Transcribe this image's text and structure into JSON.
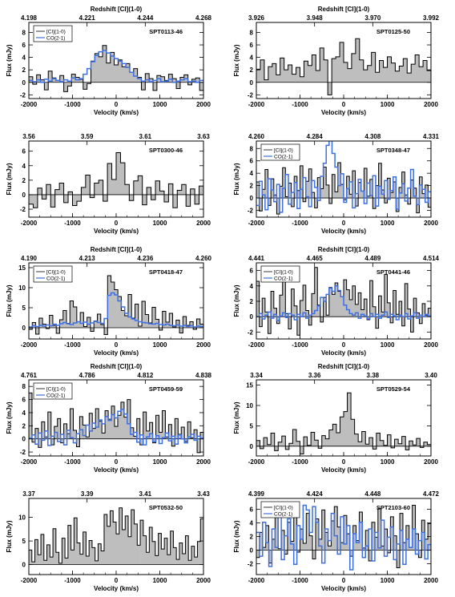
{
  "figure": {
    "type": "multi-panel spectra",
    "panel_count": 10,
    "fill_color": "#bebebe",
    "ci_line_color": "#000000",
    "co_line_color": "#3d6fe0"
  },
  "chart_data": [
    {
      "type": "area",
      "name": "SPT0113-46",
      "xlabel": "Velocity (km/s)",
      "ylabel": "Flux (mJy)",
      "top_axis_label": "Redshift [CI](1-0)",
      "top_ticks": [
        "4.198",
        "4.221",
        "4.244",
        "4.268"
      ],
      "x_ticks": [
        "-2000",
        "-1000",
        "0",
        "1000",
        "2000"
      ],
      "y_ticks": [
        "-2",
        "0",
        "2",
        "4",
        "6",
        "8"
      ],
      "xlim": [
        -2000,
        2000
      ],
      "ylim": [
        -2.6,
        9.6
      ],
      "legend": [
        "[CI](1-0)",
        "CO(2-1)"
      ],
      "ci_values": [
        0.9,
        -0.3,
        1.2,
        0.4,
        -1.2,
        1.8,
        0.7,
        0.3,
        1.1,
        -1.5,
        -0.6,
        1.3,
        0.8,
        0.5,
        -1.1,
        -0.2,
        3.4,
        4.6,
        4.1,
        5.9,
        3.1,
        4.8,
        2.8,
        3.6,
        2.5,
        3.0,
        1.6,
        2.2,
        0.8,
        -1.2,
        1.4,
        0.6,
        -1.3,
        1.1,
        0.9,
        0.3,
        1.3,
        0.6,
        -1.0,
        0.8,
        1.2,
        -0.4,
        0.5,
        0.7,
        -1.3
      ],
      "co_values": [
        0.3,
        0.1,
        0.4,
        0.0,
        0.5,
        0.2,
        0.6,
        0.3,
        0.1,
        0.4,
        0.2,
        0.7,
        0.4,
        0.6,
        1.3,
        2.2,
        3.3,
        4.3,
        4.9,
        5.1,
        4.7,
        4.2,
        3.8,
        3.4,
        3.0,
        2.4,
        1.6,
        1.0,
        0.6,
        0.2,
        0.4,
        0.1,
        0.3,
        0.6,
        0.1,
        0.2,
        0.5,
        0.0,
        0.2,
        0.4,
        0.6,
        0.1,
        0.2,
        0.0,
        0.3
      ]
    },
    {
      "type": "area",
      "name": "SPT0125-50",
      "xlabel": "Velocity (km/s)",
      "ylabel": "Flux (mJy)",
      "top_axis_label": "Redshift [CI](1-0)",
      "top_ticks": [
        "3.926",
        "3.948",
        "3.970",
        "3.992"
      ],
      "x_ticks": [
        "-2000",
        "-1000",
        "0",
        "1000",
        "2000"
      ],
      "y_ticks": [
        "-2",
        "0",
        "2",
        "4",
        "6",
        "8"
      ],
      "xlim": [
        -2000,
        2000
      ],
      "ylim": [
        -2.6,
        9.6
      ],
      "legend": [],
      "ci_values": [
        2.1,
        3.6,
        0.4,
        2.5,
        3.0,
        1.2,
        3.9,
        2.0,
        2.8,
        1.3,
        2.4,
        0.9,
        3.4,
        2.7,
        4.4,
        1.9,
        5.5,
        3.6,
        -2.0,
        3.8,
        4.1,
        6.4,
        3.2,
        2.2,
        4.6,
        7.0,
        3.6,
        2.0,
        2.7,
        4.8,
        1.6,
        3.5,
        2.4,
        4.1,
        3.1,
        1.8,
        2.6,
        3.8,
        1.5,
        2.9,
        4.4,
        2.5,
        3.5,
        1.9
      ],
      "co_values": []
    },
    {
      "type": "area",
      "name": "SPT0300-46",
      "xlabel": "Velocity (km/s)",
      "ylabel": "Flux (mJy)",
      "top_axis_label": "",
      "top_ticks": [
        "3.56",
        "3.59",
        "3.61",
        "3.63"
      ],
      "x_ticks": [
        "-2000",
        "-1000",
        "0",
        "1000",
        "2000"
      ],
      "y_ticks": [
        "-2",
        "0",
        "2",
        "4",
        "6"
      ],
      "xlim": [
        -2000,
        2000
      ],
      "ylim": [
        -3.1,
        7.4
      ],
      "legend": [],
      "ci_values": [
        -1.3,
        -1.8,
        0.9,
        -0.6,
        1.4,
        -1.7,
        0.7,
        1.6,
        -1.1,
        0.4,
        -1.5,
        -0.9,
        1.0,
        2.7,
        -0.4,
        1.6,
        2.0,
        -0.9,
        4.3,
        2.1,
        5.8,
        4.4,
        1.4,
        -0.8,
        1.9,
        2.6,
        -1.4,
        1.0,
        -0.7,
        1.9,
        0.5,
        -1.0,
        1.5,
        -1.8,
        0.6,
        1.4,
        -1.6,
        0.8,
        -1.3,
        1.2
      ],
      "co_values": []
    },
    {
      "type": "area",
      "name": "SPT0348-47",
      "xlabel": "Velocity (km/s)",
      "ylabel": "Flux (mJy)",
      "top_axis_label": "",
      "top_ticks": [
        "4.260",
        "4.284",
        "4.308",
        "4.331"
      ],
      "x_ticks": [
        "-2000",
        "-1000",
        "0",
        "1000",
        "2000"
      ],
      "y_ticks": [
        "-2",
        "0",
        "2",
        "4",
        "6",
        "8"
      ],
      "xlim": [
        -2000,
        2000
      ],
      "ylim": [
        -3.1,
        9.2
      ],
      "legend": [
        "[CI](1-0)",
        "CO(2-1)"
      ],
      "ci_values": [
        2.6,
        -2.1,
        1.4,
        4.6,
        -1.2,
        3.1,
        0.5,
        -2.6,
        1.9,
        4.9,
        0.2,
        2.4,
        -1.4,
        3.5,
        1.2,
        5.2,
        -0.6,
        2.7,
        4.7,
        0.9,
        -1.6,
        3.3,
        1.5,
        5.0,
        2.1,
        -0.9,
        3.8,
        1.0,
        5.7,
        2.2,
        -0.3,
        3.5,
        0.6,
        4.4,
        -1.3,
        2.5,
        1.1,
        4.8,
        0.3,
        3.0,
        -1.7,
        2.0,
        5.6,
        1.3,
        -0.8,
        3.2,
        0.9,
        2.6,
        -2.2,
        1.7,
        4.2,
        0.5,
        -1.0,
        2.9,
        1.6,
        -2.4,
        3.4,
        0.7,
        2.1,
        -1.5
      ],
      "co_values": [
        -1.2,
        2.7,
        0.5,
        -1.9,
        3.1,
        1.3,
        -0.6,
        2.2,
        -2.3,
        1.6,
        3.8,
        -1.0,
        0.9,
        2.5,
        -1.7,
        1.4,
        3.3,
        0.2,
        -1.4,
        2.8,
        1.7,
        -0.4,
        3.5,
        5.6,
        8.5,
        9.5,
        7.2,
        5.0,
        2.0,
        3.9,
        -0.7,
        1.5,
        2.6,
        -1.6,
        0.7,
        3.0,
        1.1,
        -0.9,
        2.4,
        0.4,
        3.6,
        -1.3,
        1.9,
        0.6,
        2.8,
        -0.2,
        1.2,
        3.4,
        -1.8,
        0.8,
        2.3,
        -0.5,
        1.6,
        4.6,
        0.3,
        -1.1,
        2.1,
        1.4,
        -0.7,
        1.0
      ]
    },
    {
      "type": "area",
      "name": "SPT0418-47",
      "xlabel": "Velocity (km/s)",
      "ylabel": "Flux (mJy)",
      "top_axis_label": "Redshift [CI](1-0)",
      "top_ticks": [
        "4.190",
        "4.213",
        "4.236",
        "4.260"
      ],
      "x_ticks": [
        "-2000",
        "-1000",
        "0",
        "1000",
        "2000"
      ],
      "y_ticks": [
        "0",
        "5",
        "10",
        "15"
      ],
      "xlim": [
        -2000,
        2000
      ],
      "ylim": [
        -2.8,
        16.2
      ],
      "legend": [
        "[CI](1-0)",
        "CO(2-1)"
      ],
      "ci_values": [
        -0.4,
        1.3,
        -1.6,
        2.4,
        0.9,
        -0.2,
        3.1,
        0.6,
        -1.4,
        2.0,
        4.3,
        1.1,
        6.7,
        5.2,
        1.5,
        3.8,
        0.3,
        2.6,
        -0.9,
        1.7,
        3.4,
        0.8,
        -1.7,
        13.0,
        11.4,
        9.5,
        7.8,
        4.3,
        3.0,
        8.3,
        2.4,
        5.9,
        0.4,
        6.6,
        3.3,
        1.2,
        5.1,
        2.1,
        -0.6,
        4.1,
        1.4,
        3.6,
        0.2,
        1.9,
        -1.3,
        2.8,
        0.6,
        1.5,
        -0.4,
        2.2,
        0.9
      ],
      "co_values": [
        0.2,
        0.5,
        0.3,
        0.6,
        0.4,
        0.7,
        0.5,
        0.9,
        0.6,
        1.0,
        1.3,
        1.0,
        0.8,
        1.2,
        1.5,
        1.1,
        1.4,
        0.9,
        1.2,
        1.6,
        1.3,
        1.1,
        2.3,
        8.1,
        8.7,
        8.2,
        6.7,
        5.2,
        3.6,
        2.7,
        2.2,
        1.8,
        1.5,
        1.3,
        1.2,
        1.0,
        0.9,
        1.1,
        0.8,
        0.7,
        0.9,
        0.6,
        0.5,
        0.7,
        0.4,
        0.6,
        0.3,
        0.5,
        0.2,
        0.4,
        0.3
      ]
    },
    {
      "type": "area",
      "name": "SPT0441-46",
      "xlabel": "Velocity (km/s)",
      "ylabel": "Flux (mJy)",
      "top_axis_label": "Redshift [CI](1-0)",
      "top_ticks": [
        "4.441",
        "4.465",
        "4.489",
        "4.514"
      ],
      "x_ticks": [
        "-2000",
        "-1000",
        "0",
        "1000",
        "2000"
      ],
      "y_ticks": [
        "-2",
        "0",
        "2",
        "4",
        "6"
      ],
      "xlim": [
        -2000,
        2000
      ],
      "ylim": [
        -2.9,
        7.0
      ],
      "legend": [
        "[CI](1-0)",
        "CO(2-1)"
      ],
      "ci_values": [
        4.6,
        -1.3,
        2.4,
        0.6,
        -2.2,
        3.3,
        1.1,
        -0.9,
        2.8,
        5.0,
        0.4,
        -1.6,
        3.6,
        1.4,
        -2.4,
        2.1,
        4.1,
        0.8,
        -1.1,
        3.0,
        6.4,
        1.5,
        -0.7,
        2.5,
        0.2,
        3.8,
        2.9,
        4.4,
        3.3,
        2.6,
        4.8,
        3.5,
        2.2,
        4.0,
        1.6,
        3.1,
        0.9,
        2.3,
        -0.4,
        4.7,
        1.3,
        -1.5,
        2.7,
        0.6,
        5.5,
        1.8,
        -0.8,
        3.4,
        0.3,
        2.0,
        -1.2,
        4.3,
        1.0,
        -2.0,
        2.4,
        0.5,
        -0.9,
        1.7,
        0.2,
        1.1
      ],
      "co_values": [
        0.0,
        0.4,
        -0.3,
        0.2,
        0.6,
        -0.2,
        0.3,
        -0.5,
        0.1,
        0.5,
        -0.1,
        0.4,
        0.2,
        -0.4,
        0.3,
        0.0,
        0.5,
        -0.2,
        0.2,
        0.4,
        0.8,
        1.4,
        2.5,
        2.0,
        2.9,
        3.7,
        3.3,
        4.0,
        3.4,
        2.6,
        1.5,
        0.9,
        0.4,
        0.2,
        0.5,
        -0.2,
        0.3,
        0.1,
        -0.3,
        0.4,
        0.0,
        0.3,
        -0.2,
        0.2,
        0.6,
        -0.1,
        0.3,
        0.1,
        -0.4,
        0.2,
        0.0,
        0.4,
        -0.3,
        0.1,
        0.5,
        -0.2,
        0.2,
        0.0,
        0.3,
        0.1
      ]
    },
    {
      "type": "area",
      "name": "SPT0459-59",
      "xlabel": "Velocity (km/s)",
      "ylabel": "Flux (mJy)",
      "top_axis_label": "Redshift [CI](1-0)",
      "top_ticks": [
        "4.761",
        "4.786",
        "4.812",
        "4.838"
      ],
      "x_ticks": [
        "-2000",
        "-1000",
        "0",
        "1000",
        "2000"
      ],
      "y_ticks": [
        "-2",
        "0",
        "2",
        "4",
        "6",
        "8"
      ],
      "xlim": [
        -2000,
        2000
      ],
      "ylim": [
        -2.6,
        9.0
      ],
      "legend": [
        "[CI](1-0)",
        "CO(2-1)"
      ],
      "ci_values": [
        7.0,
        -0.5,
        1.6,
        -1.3,
        2.6,
        0.3,
        4.1,
        -0.9,
        1.9,
        3.1,
        -0.6,
        2.3,
        0.8,
        4.6,
        1.3,
        -1.2,
        3.4,
        2.1,
        0.3,
        3.9,
        1.6,
        4.6,
        2.7,
        0.9,
        4.3,
        3.0,
        5.0,
        1.9,
        3.6,
        5.6,
        3.3,
        6.0,
        1.7,
        0.4,
        3.1,
        -0.9,
        4.1,
        1.2,
        2.5,
        -0.6,
        3.6,
        1.0,
        4.3,
        0.3,
        2.2,
        -1.1,
        3.1,
        0.7,
        1.8,
        -0.4,
        2.6,
        0.2,
        1.4,
        -2.1,
        1.0
      ],
      "co_values": [
        0.1,
        0.6,
        -0.8,
        0.9,
        -0.2,
        1.2,
        -1.0,
        0.4,
        1.0,
        -0.4,
        0.7,
        -0.9,
        1.3,
        0.2,
        -0.6,
        0.8,
        1.4,
        0.5,
        2.1,
        1.2,
        2.4,
        1.8,
        2.9,
        2.3,
        3.4,
        2.8,
        3.7,
        3.2,
        4.2,
        4.5,
        3.8,
        2.3,
        0.7,
        1.0,
        -0.5,
        0.6,
        -0.9,
        0.3,
        0.8,
        -0.4,
        0.5,
        -0.7,
        0.2,
        0.9,
        -0.3,
        0.4,
        -0.8,
        0.6,
        0.0,
        -0.6,
        0.3,
        0.7,
        -0.2,
        0.4,
        0.1
      ]
    },
    {
      "type": "area",
      "name": "SPT0529-54",
      "xlabel": "Velocity (km/s)",
      "ylabel": "Flux (mJy)",
      "top_axis_label": "Redshift [CI](1-0)",
      "top_ticks": [
        "3.34",
        "3.36",
        "3.38",
        "3.40"
      ],
      "x_ticks": [
        "-2000",
        "-1000",
        "0",
        "1000",
        "2000"
      ],
      "y_ticks": [
        "0",
        "5",
        "10",
        "15"
      ],
      "xlim": [
        -2000,
        2000
      ],
      "ylim": [
        -2.4,
        16.3
      ],
      "legend": [],
      "ci_values": [
        1.4,
        -0.6,
        2.1,
        0.4,
        3.2,
        -1.1,
        1.0,
        2.5,
        -0.8,
        0.7,
        4.1,
        1.2,
        -1.9,
        2.3,
        0.2,
        3.4,
        1.5,
        -0.5,
        2.6,
        1.8,
        4.0,
        5.4,
        3.3,
        7.2,
        8.5,
        13.1,
        6.6,
        3.0,
        1.1,
        3.6,
        0.5,
        2.1,
        -0.7,
        3.2,
        1.4,
        0.2,
        2.8,
        -0.4,
        1.7,
        0.6,
        2.4,
        -0.9,
        1.3,
        0.3,
        1.9,
        -0.3,
        1.0,
        0.4
      ],
      "co_values": []
    },
    {
      "type": "area",
      "name": "SPT0532-50",
      "xlabel": "Velocity (km/s)",
      "ylabel": "Flux (mJy)",
      "top_axis_label": "",
      "top_ticks": [
        "3.37",
        "3.39",
        "3.41",
        "3.43"
      ],
      "x_ticks": [
        "-2000",
        "-1000",
        "0",
        "1000",
        "2000"
      ],
      "y_ticks": [
        "0",
        "5",
        "10"
      ],
      "xlim": [
        -2000,
        2000
      ],
      "ylim": [
        -2.1,
        14.0
      ],
      "legend": [],
      "ci_values": [
        3.1,
        0.6,
        5.3,
        2.1,
        6.4,
        0.9,
        4.2,
        1.6,
        7.6,
        2.6,
        0.3,
        5.6,
        1.4,
        8.3,
        3.1,
        9.9,
        4.6,
        2.2,
        6.9,
        1.8,
        5.1,
        3.6,
        0.8,
        4.4,
        2.9,
        10.6,
        8.1,
        11.4,
        9.0,
        6.5,
        12.0,
        7.4,
        10.3,
        5.9,
        11.6,
        8.6,
        4.1,
        9.4,
        6.1,
        2.6,
        7.9,
        4.9,
        1.9,
        6.6,
        3.3,
        5.6,
        2.1,
        7.1,
        3.6,
        1.1,
        4.6,
        2.3,
        6.1,
        0.9,
        3.9,
        1.6,
        4.9,
        9.7
      ],
      "co_values": []
    },
    {
      "type": "area",
      "name": "SPT2103-60",
      "xlabel": "Velocity (km/s)",
      "ylabel": "Flux (mJy)",
      "top_axis_label": "",
      "top_ticks": [
        "4.399",
        "4.424",
        "4.448",
        "4.472"
      ],
      "x_ticks": [
        "-2000",
        "-1000",
        "0",
        "1000",
        "2000"
      ],
      "y_ticks": [
        "-2",
        "0",
        "2",
        "4",
        "6"
      ],
      "xlim": [
        -2000,
        2000
      ],
      "ylim": [
        -3.6,
        7.6
      ],
      "legend": [
        "[CI](1-0)",
        "CO(2-1)"
      ],
      "ci_values": [
        -1.1,
        2.6,
        0.4,
        3.6,
        -1.9,
        1.6,
        5.0,
        0.2,
        2.9,
        -0.6,
        4.1,
        1.3,
        6.1,
        -0.3,
        3.1,
        1.0,
        5.4,
        2.1,
        -1.3,
        4.6,
        1.6,
        5.9,
        2.6,
        0.6,
        4.3,
        6.4,
        3.4,
        1.1,
        5.1,
        2.4,
        -0.9,
        3.6,
        1.4,
        5.6,
        0.3,
        2.9,
        -1.6,
        4.1,
        1.9,
        6.1,
        0.6,
        3.1,
        -0.4,
        4.9,
        2.1,
        -2.6,
        5.4,
        1.1,
        3.6,
        0.4,
        6.6,
        2.4,
        -1.1,
        4.4,
        1.6,
        3.9
      ],
      "co_values": [
        2.6,
        -0.9,
        4.1,
        1.1,
        -2.4,
        3.1,
        0.4,
        5.1,
        -1.4,
        2.1,
        4.6,
        0.9,
        -2.1,
        3.6,
        1.6,
        6.6,
        5.9,
        2.6,
        6.4,
        4.1,
        0.6,
        -1.9,
        3.1,
        1.4,
        5.4,
        2.1,
        -0.6,
        4.9,
        0.9,
        3.6,
        -2.9,
        2.4,
        1.1,
        4.1,
        -1.1,
        0.6,
        3.1,
        -1.6,
        2.6,
        0.3,
        4.4,
        -0.9,
        1.9,
        3.4,
        -1.4,
        0.9,
        2.9,
        -2.1,
        1.6,
        0.4,
        3.1,
        -0.6,
        1.4,
        2.6,
        -1.3,
        0.8
      ]
    }
  ]
}
